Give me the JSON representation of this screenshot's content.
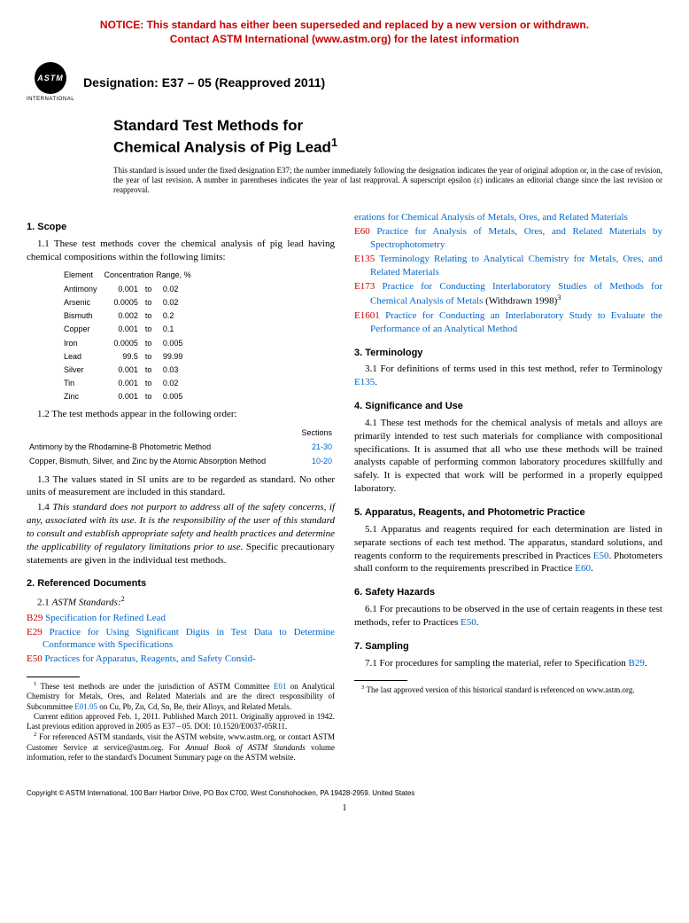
{
  "notice": {
    "line1": "NOTICE: This standard has either been superseded and replaced by a new version or withdrawn.",
    "line2": "Contact ASTM International (www.astm.org) for the latest information",
    "color": "#cc0000"
  },
  "logo": {
    "overlay": "ASTM",
    "caption": "INTERNATIONAL"
  },
  "designation": "Designation: E37 – 05 (Reapproved 2011)",
  "title": {
    "line1": "Standard Test Methods for",
    "line2": "Chemical Analysis of Pig Lead",
    "sup": "1"
  },
  "issuance": "This standard is issued under the fixed designation E37; the number immediately following the designation indicates the year of original adoption or, in the case of revision, the year of last revision. A number in parentheses indicates the year of last reapproval. A superscript epsilon (ε) indicates an editorial change since the last revision or reapproval.",
  "s1": {
    "h": "1. Scope",
    "p1": "1.1 These test methods cover the chemical analysis of pig lead having chemical compositions within the following limits:",
    "table_head_el": "Element",
    "table_head_range": "Concentration Range, %",
    "rows": [
      {
        "el": "Antimony",
        "lo": "0.001",
        "hi": "0.02"
      },
      {
        "el": "Arsenic",
        "lo": "0.0005",
        "hi": "0.02"
      },
      {
        "el": "Bismuth",
        "lo": "0.002",
        "hi": "0.2"
      },
      {
        "el": "Copper",
        "lo": "0.001",
        "hi": "0.1"
      },
      {
        "el": "Iron",
        "lo": "0.0005",
        "hi": "0.005"
      },
      {
        "el": "Lead",
        "lo": "99.5",
        "hi": "99.99"
      },
      {
        "el": "Silver",
        "lo": "0.001",
        "hi": "0.03"
      },
      {
        "el": "Tin",
        "lo": "0.001",
        "hi": "0.02"
      },
      {
        "el": "Zinc",
        "lo": "0.001",
        "hi": "0.005"
      }
    ],
    "p2": "1.2 The test methods appear in the following order:",
    "sec_head": "Sections",
    "sec_rows": [
      {
        "m": "Antimony by the Rhodamine-B Photometric Method",
        "s": "21-30"
      },
      {
        "m": "Copper, Bismuth, Silver, and Zinc by the Atomic Absorption Method",
        "s": "10-20"
      }
    ],
    "p3": "1.3 The values stated in SI units are to be regarded as standard. No other units of measurement are included in this standard.",
    "p4a": "1.4 ",
    "p4b": "This standard does not purport to address all of the safety concerns, if any, associated with its use. It is the responsibility of the user of this standard to consult and establish appropriate safety and health practices and determine the applicability of regulatory limitations prior to use.",
    "p4c": " Specific precautionary statements are given in the individual test methods."
  },
  "s2": {
    "h": "2. Referenced Documents",
    "p1a": "2.1 ",
    "p1b": "ASTM Standards:",
    "p1sup": "2",
    "refs_left": [
      {
        "code": "B29",
        "txt": "Specification for Refined Lead"
      },
      {
        "code": "E29",
        "txt": "Practice for Using Significant Digits in Test Data to Determine Conformance with Specifications"
      },
      {
        "code": "E50",
        "txt": "Practices for Apparatus, Reagents, and Safety Consid-"
      }
    ],
    "refs_right": [
      {
        "code": "",
        "txt": "erations for Chemical Analysis of Metals, Ores, and Related Materials"
      },
      {
        "code": "E60",
        "txt": "Practice for Analysis of Metals, Ores, and Related Materials by Spectrophotometry"
      },
      {
        "code": "E135",
        "txt": "Terminology Relating to Analytical Chemistry for Metals, Ores, and Related Materials"
      },
      {
        "code": "E173",
        "txt": "Practice for Conducting Interlaboratory Studies of Methods for Chemical Analysis of Metals",
        "tail": " (Withdrawn 1998)",
        "sup": "3"
      },
      {
        "code": "E1601",
        "txt": "Practice for Conducting an Interlaboratory Study to Evaluate the Performance of an Analytical Method"
      }
    ]
  },
  "s3": {
    "h": "3. Terminology",
    "p1a": "3.1 For definitions of terms used in this test method, refer to Terminology ",
    "p1link": "E135",
    "p1b": "."
  },
  "s4": {
    "h": "4. Significance and Use",
    "p1": "4.1 These test methods for the chemical analysis of metals and alloys are primarily intended to test such materials for compliance with compositional specifications. It is assumed that all who use these methods will be trained analysts capable of performing common laboratory procedures skillfully and safely. It is expected that work will be performed in a properly equipped laboratory."
  },
  "s5": {
    "h": "5. Apparatus, Reagents, and Photometric Practice",
    "p1a": "5.1 Apparatus and reagents required for each determination are listed in separate sections of each test method. The apparatus, standard solutions, and reagents conform to the requirements prescribed in Practices ",
    "l1": "E50",
    "p1b": ". Photometers shall conform to the requirements prescribed in Practice ",
    "l2": "E60",
    "p1c": "."
  },
  "s6": {
    "h": "6. Safety Hazards",
    "p1a": "6.1 For precautions to be observed in the use of certain reagents in these test methods, refer to Practices ",
    "l1": "E50",
    "p1b": "."
  },
  "s7": {
    "h": "7. Sampling",
    "p1a": "7.1 For procedures for sampling the material, refer to Specification ",
    "l1": "B29",
    "p1b": "."
  },
  "fn": {
    "f1a": "These test methods are under the jurisdiction of ASTM Committee ",
    "f1l1": "E01",
    "f1b": " on Analytical Chemistry for Metals, Ores, and Related Materials and are the direct responsibility of Subcommittee ",
    "f1l2": "E01.05",
    "f1c": " on Cu, Pb, Zn, Cd, Sn, Be, their Alloys, and Related Metals.",
    "f1d": "Current edition approved Feb. 1, 2011. Published March 2011. Originally approved in 1942. Last previous edition approved in 2005 as E37 – 05. DOI: 10.1520/E0037-05R11.",
    "f2a": "For referenced ASTM standards, visit the ASTM website, www.astm.org, or contact ASTM Customer Service at service@astm.org. For ",
    "f2i": "Annual Book of ASTM Standards",
    "f2b": " volume information, refer to the standard's Document Summary page on the ASTM website.",
    "f3": "The last approved version of this historical standard is referenced on www.astm.org."
  },
  "copyright": "Copyright © ASTM International, 100 Barr Harbor Drive, PO Box C700, West Conshohocken, PA 19428-2959. United States",
  "page": "1",
  "colors": {
    "link": "#0066cc",
    "code": "#cc0000"
  }
}
